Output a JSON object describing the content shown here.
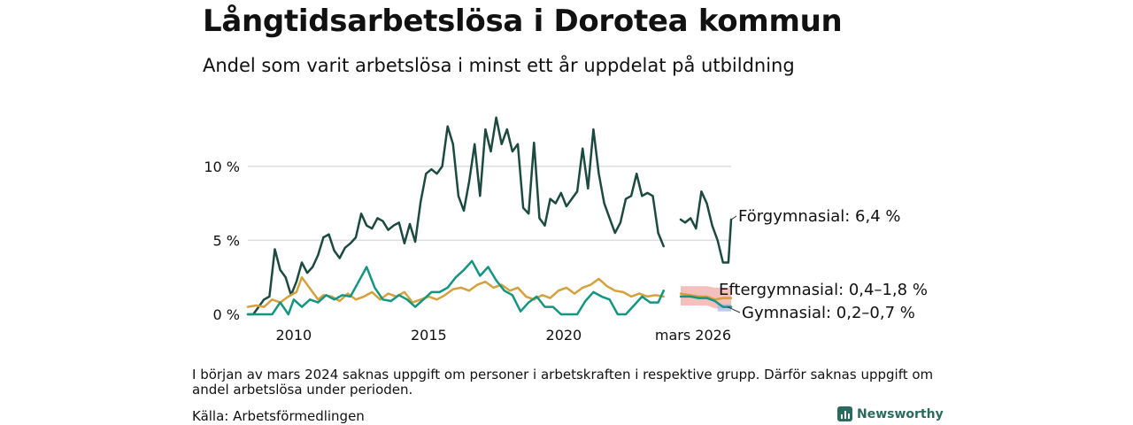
{
  "title": "Långtidsarbetslösa i Dorotea kommun",
  "subtitle": "Andel som varit arbetslösa i minst ett år uppdelat på utbildning",
  "note": "I början av mars 2024 saknas uppgift om personer i arbetskraften i respektive grupp. Därför saknas uppgift om andel arbetslösa under perioden.",
  "source": "Källa: Arbetsförmedlingen",
  "brand": "Newsworthy",
  "colors": {
    "forgymnasial": "#1d4a3e",
    "gymnasial": "#139580",
    "eftergymnasial": "#d4a13e",
    "band_eftergymnasial": "#f2a9a5",
    "band_gymnasial": "#aab8ea",
    "grid": "#dddddd"
  },
  "chart_data": {
    "type": "line",
    "x_unit": "year",
    "xlim": [
      2008.3,
      2026.2
    ],
    "ylim": [
      0,
      14
    ],
    "yticks": [
      {
        "value": 0,
        "label": "0 %"
      },
      {
        "value": 5,
        "label": "5 %"
      },
      {
        "value": 10,
        "label": "10 %"
      }
    ],
    "xticks": [
      {
        "value": 2010,
        "label": "2010"
      },
      {
        "value": 2015,
        "label": "2015"
      },
      {
        "value": 2020,
        "label": "2020"
      },
      {
        "value": 2026.2,
        "label": "mars 2026"
      }
    ],
    "gap": [
      2024.17,
      2024.33
    ],
    "series": [
      {
        "name": "Förgymnasial",
        "label": "Förgymnasial: 6,4 %",
        "color_key": "forgymnasial",
        "points": [
          [
            2008.3,
            0.0
          ],
          [
            2008.5,
            0.0
          ],
          [
            2008.7,
            0.5
          ],
          [
            2008.9,
            1.0
          ],
          [
            2009.1,
            1.2
          ],
          [
            2009.3,
            4.4
          ],
          [
            2009.5,
            3.0
          ],
          [
            2009.7,
            2.5
          ],
          [
            2009.9,
            1.3
          ],
          [
            2010.1,
            2.2
          ],
          [
            2010.3,
            3.5
          ],
          [
            2010.5,
            2.8
          ],
          [
            2010.7,
            3.2
          ],
          [
            2010.9,
            4.0
          ],
          [
            2011.1,
            5.2
          ],
          [
            2011.3,
            5.4
          ],
          [
            2011.5,
            4.3
          ],
          [
            2011.7,
            3.8
          ],
          [
            2011.9,
            4.5
          ],
          [
            2012.1,
            4.8
          ],
          [
            2012.3,
            5.2
          ],
          [
            2012.5,
            6.8
          ],
          [
            2012.7,
            6.0
          ],
          [
            2012.9,
            5.8
          ],
          [
            2013.1,
            6.5
          ],
          [
            2013.3,
            6.3
          ],
          [
            2013.5,
            5.7
          ],
          [
            2013.7,
            6.0
          ],
          [
            2013.9,
            6.2
          ],
          [
            2014.1,
            4.8
          ],
          [
            2014.3,
            6.1
          ],
          [
            2014.5,
            4.9
          ],
          [
            2014.7,
            7.6
          ],
          [
            2014.9,
            9.5
          ],
          [
            2015.1,
            9.8
          ],
          [
            2015.3,
            9.5
          ],
          [
            2015.5,
            10.0
          ],
          [
            2015.7,
            12.7
          ],
          [
            2015.9,
            11.5
          ],
          [
            2016.1,
            8.0
          ],
          [
            2016.3,
            7.0
          ],
          [
            2016.5,
            9.0
          ],
          [
            2016.7,
            11.5
          ],
          [
            2016.9,
            8.0
          ],
          [
            2017.1,
            12.5
          ],
          [
            2017.3,
            11.0
          ],
          [
            2017.5,
            13.3
          ],
          [
            2017.7,
            11.5
          ],
          [
            2017.9,
            12.5
          ],
          [
            2018.1,
            11.0
          ],
          [
            2018.3,
            11.5
          ],
          [
            2018.5,
            7.2
          ],
          [
            2018.7,
            6.8
          ],
          [
            2018.9,
            11.6
          ],
          [
            2019.1,
            6.5
          ],
          [
            2019.3,
            6.0
          ],
          [
            2019.5,
            7.8
          ],
          [
            2019.7,
            7.5
          ],
          [
            2019.9,
            8.2
          ],
          [
            2020.1,
            7.3
          ],
          [
            2020.3,
            7.8
          ],
          [
            2020.5,
            8.3
          ],
          [
            2020.7,
            11.2
          ],
          [
            2020.9,
            8.5
          ],
          [
            2021.1,
            12.5
          ],
          [
            2021.3,
            9.5
          ],
          [
            2021.5,
            7.5
          ],
          [
            2021.7,
            6.5
          ],
          [
            2021.9,
            5.5
          ],
          [
            2022.1,
            6.2
          ],
          [
            2022.3,
            7.8
          ],
          [
            2022.5,
            8.0
          ],
          [
            2022.7,
            9.5
          ],
          [
            2022.9,
            8.0
          ],
          [
            2023.1,
            8.2
          ],
          [
            2023.3,
            8.0
          ],
          [
            2023.5,
            5.5
          ],
          [
            2023.7,
            4.6
          ],
          [
            2024.33,
            6.4
          ],
          [
            2024.5,
            6.2
          ],
          [
            2024.7,
            6.5
          ],
          [
            2024.9,
            5.8
          ],
          [
            2025.1,
            8.3
          ],
          [
            2025.3,
            7.5
          ],
          [
            2025.5,
            6.0
          ],
          [
            2025.7,
            5.0
          ],
          [
            2025.9,
            3.5
          ],
          [
            2026.1,
            3.5
          ],
          [
            2026.2,
            6.4
          ]
        ]
      },
      {
        "name": "Eftergymnasial",
        "label": "Eftergymnasial: 0,4–1,8 %",
        "color_key": "eftergymnasial",
        "points": [
          [
            2008.3,
            0.5
          ],
          [
            2008.6,
            0.6
          ],
          [
            2008.9,
            0.5
          ],
          [
            2009.2,
            1.0
          ],
          [
            2009.5,
            0.8
          ],
          [
            2009.8,
            1.2
          ],
          [
            2010.1,
            1.5
          ],
          [
            2010.3,
            2.5
          ],
          [
            2010.5,
            2.0
          ],
          [
            2010.7,
            1.5
          ],
          [
            2010.9,
            1.0
          ],
          [
            2011.1,
            1.3
          ],
          [
            2011.4,
            1.2
          ],
          [
            2011.7,
            0.9
          ],
          [
            2012.0,
            1.4
          ],
          [
            2012.3,
            1.0
          ],
          [
            2012.6,
            1.2
          ],
          [
            2012.9,
            1.5
          ],
          [
            2013.2,
            1.0
          ],
          [
            2013.5,
            1.4
          ],
          [
            2013.8,
            1.2
          ],
          [
            2014.1,
            1.5
          ],
          [
            2014.4,
            0.8
          ],
          [
            2014.7,
            1.0
          ],
          [
            2015.0,
            1.2
          ],
          [
            2015.3,
            1.0
          ],
          [
            2015.6,
            1.3
          ],
          [
            2015.9,
            1.7
          ],
          [
            2016.2,
            1.8
          ],
          [
            2016.5,
            1.6
          ],
          [
            2016.8,
            2.0
          ],
          [
            2017.1,
            2.2
          ],
          [
            2017.4,
            1.8
          ],
          [
            2017.7,
            2.0
          ],
          [
            2018.0,
            1.6
          ],
          [
            2018.3,
            1.8
          ],
          [
            2018.6,
            1.2
          ],
          [
            2018.9,
            1.0
          ],
          [
            2019.2,
            1.3
          ],
          [
            2019.5,
            1.1
          ],
          [
            2019.8,
            1.6
          ],
          [
            2020.1,
            1.8
          ],
          [
            2020.4,
            1.4
          ],
          [
            2020.7,
            1.8
          ],
          [
            2021.0,
            2.0
          ],
          [
            2021.3,
            2.4
          ],
          [
            2021.6,
            1.9
          ],
          [
            2021.9,
            1.6
          ],
          [
            2022.2,
            1.5
          ],
          [
            2022.5,
            1.2
          ],
          [
            2022.8,
            1.4
          ],
          [
            2023.1,
            1.2
          ],
          [
            2023.4,
            1.3
          ],
          [
            2023.7,
            1.2
          ],
          [
            2024.33,
            1.4
          ],
          [
            2024.7,
            1.3
          ],
          [
            2025.0,
            1.2
          ],
          [
            2025.3,
            1.2
          ],
          [
            2025.6,
            1.0
          ],
          [
            2025.9,
            1.1
          ],
          [
            2026.2,
            1.1
          ]
        ]
      },
      {
        "name": "Gymnasial",
        "label": "Gymnasial: 0,2–0,7 %",
        "color_key": "gymnasial",
        "points": [
          [
            2008.3,
            0.0
          ],
          [
            2008.6,
            0.0
          ],
          [
            2008.9,
            0.0
          ],
          [
            2009.2,
            0.0
          ],
          [
            2009.5,
            0.8
          ],
          [
            2009.8,
            0.0
          ],
          [
            2010.0,
            1.0
          ],
          [
            2010.3,
            0.5
          ],
          [
            2010.6,
            1.0
          ],
          [
            2010.9,
            0.8
          ],
          [
            2011.2,
            1.3
          ],
          [
            2011.5,
            1.0
          ],
          [
            2011.8,
            1.3
          ],
          [
            2012.1,
            1.2
          ],
          [
            2012.4,
            2.2
          ],
          [
            2012.7,
            3.2
          ],
          [
            2013.0,
            1.8
          ],
          [
            2013.3,
            1.0
          ],
          [
            2013.6,
            0.9
          ],
          [
            2013.9,
            1.3
          ],
          [
            2014.2,
            1.0
          ],
          [
            2014.5,
            0.5
          ],
          [
            2014.8,
            1.0
          ],
          [
            2015.1,
            1.5
          ],
          [
            2015.4,
            1.5
          ],
          [
            2015.7,
            1.8
          ],
          [
            2016.0,
            2.5
          ],
          [
            2016.3,
            3.0
          ],
          [
            2016.6,
            3.6
          ],
          [
            2016.9,
            2.6
          ],
          [
            2017.2,
            3.2
          ],
          [
            2017.5,
            2.3
          ],
          [
            2017.8,
            1.6
          ],
          [
            2018.1,
            1.3
          ],
          [
            2018.4,
            0.2
          ],
          [
            2018.7,
            0.8
          ],
          [
            2019.0,
            1.2
          ],
          [
            2019.3,
            0.5
          ],
          [
            2019.6,
            0.5
          ],
          [
            2019.9,
            0.0
          ],
          [
            2020.2,
            0.0
          ],
          [
            2020.5,
            0.0
          ],
          [
            2020.8,
            0.9
          ],
          [
            2021.1,
            1.5
          ],
          [
            2021.4,
            1.2
          ],
          [
            2021.7,
            1.0
          ],
          [
            2022.0,
            0.0
          ],
          [
            2022.3,
            0.0
          ],
          [
            2022.6,
            0.6
          ],
          [
            2022.9,
            1.2
          ],
          [
            2023.2,
            0.8
          ],
          [
            2023.5,
            0.8
          ],
          [
            2023.7,
            1.6
          ],
          [
            2024.33,
            1.2
          ],
          [
            2024.7,
            1.2
          ],
          [
            2025.0,
            1.1
          ],
          [
            2025.3,
            1.1
          ],
          [
            2025.6,
            0.9
          ],
          [
            2025.9,
            0.5
          ],
          [
            2026.2,
            0.5
          ]
        ]
      }
    ],
    "bands": [
      {
        "name": "Eftergymnasial osäkerhet",
        "color_key": "band_eftergymnasial",
        "x": [
          2024.33,
          2026.2
        ],
        "points": [
          [
            2024.33,
            0.6,
            1.9
          ],
          [
            2025.3,
            0.6,
            1.9
          ],
          [
            2025.6,
            0.4,
            1.8
          ],
          [
            2026.2,
            0.4,
            1.8
          ]
        ]
      },
      {
        "name": "Gymnasial osäkerhet",
        "color_key": "band_gymnasial",
        "x": [
          2025.7,
          2026.2
        ],
        "points": [
          [
            2025.7,
            0.2,
            0.7
          ],
          [
            2026.2,
            0.2,
            0.7
          ]
        ]
      }
    ]
  }
}
